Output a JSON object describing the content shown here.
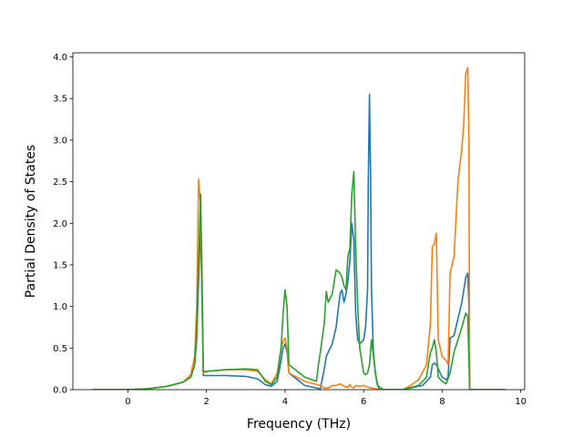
{
  "chart_data": {
    "type": "line",
    "title": "",
    "xlabel": "Frequency (THz)",
    "ylabel": "Partial Density of States",
    "xlim": [
      -1.4,
      10.1
    ],
    "ylim": [
      0,
      4.05
    ],
    "xticks": [
      0,
      2,
      4,
      6,
      8,
      10
    ],
    "yticks": [
      0.0,
      0.5,
      1.0,
      1.5,
      2.0,
      2.5,
      3.0,
      3.5,
      4.0
    ],
    "xtick_labels": [
      "0",
      "2",
      "4",
      "6",
      "8",
      "10"
    ],
    "ytick_labels": [
      "0.0",
      "0.5",
      "1.0",
      "1.5",
      "2.0",
      "2.5",
      "3.0",
      "3.5",
      "4.0"
    ],
    "grid": false,
    "legend": null,
    "series": [
      {
        "color": "#1f77b4",
        "x": [
          -0.9,
          0.0,
          0.5,
          1.0,
          1.4,
          1.6,
          1.7,
          1.75,
          1.8,
          1.85,
          1.88,
          1.92,
          2.0,
          2.5,
          3.0,
          3.3,
          3.5,
          3.65,
          3.8,
          3.9,
          3.95,
          4.0,
          4.05,
          4.1,
          4.5,
          4.9,
          5.0,
          5.05,
          5.1,
          5.2,
          5.3,
          5.4,
          5.45,
          5.5,
          5.55,
          5.6,
          5.65,
          5.7,
          5.75,
          5.8,
          5.85,
          5.9,
          6.0,
          6.05,
          6.1,
          6.12,
          6.15,
          6.18,
          6.2,
          6.25,
          6.3,
          6.35,
          6.4,
          7.0,
          7.5,
          7.7,
          7.75,
          7.8,
          7.85,
          7.9,
          8.0,
          8.1,
          8.15,
          8.2,
          8.3,
          8.4,
          8.5,
          8.6,
          8.65,
          8.68,
          8.7,
          9.6
        ],
        "y": [
          0.0,
          0.0,
          0.01,
          0.04,
          0.09,
          0.15,
          0.3,
          0.6,
          1.3,
          2.0,
          1.2,
          0.17,
          0.17,
          0.17,
          0.16,
          0.13,
          0.06,
          0.04,
          0.1,
          0.35,
          0.5,
          0.55,
          0.45,
          0.2,
          0.05,
          0.01,
          0.25,
          0.4,
          0.45,
          0.55,
          0.75,
          1.15,
          1.2,
          1.05,
          1.15,
          1.3,
          1.55,
          2.0,
          1.8,
          0.9,
          0.6,
          0.55,
          0.6,
          0.75,
          1.2,
          2.5,
          3.55,
          2.5,
          1.2,
          0.45,
          0.2,
          0.07,
          0.0,
          0.0,
          0.05,
          0.15,
          0.3,
          0.32,
          0.3,
          0.25,
          0.15,
          0.12,
          0.15,
          0.62,
          0.65,
          0.85,
          1.05,
          1.35,
          1.4,
          1.0,
          0.0,
          0.0
        ]
      },
      {
        "color": "#ff7f0e",
        "x": [
          -0.9,
          0.0,
          0.5,
          1.0,
          1.4,
          1.6,
          1.7,
          1.75,
          1.8,
          1.85,
          1.88,
          1.92,
          2.0,
          2.5,
          3.0,
          3.3,
          3.5,
          3.65,
          3.8,
          3.9,
          3.95,
          4.0,
          4.05,
          4.1,
          4.5,
          4.9,
          5.0,
          5.1,
          5.2,
          5.3,
          5.4,
          5.5,
          5.6,
          5.65,
          5.7,
          5.75,
          5.8,
          5.9,
          6.0,
          6.1,
          6.2,
          6.3,
          6.4,
          7.0,
          7.2,
          7.4,
          7.6,
          7.7,
          7.75,
          7.8,
          7.85,
          7.9,
          8.0,
          8.1,
          8.15,
          8.2,
          8.3,
          8.4,
          8.5,
          8.55,
          8.6,
          8.65,
          8.68,
          8.7,
          9.6
        ],
        "y": [
          0.0,
          0.0,
          0.01,
          0.04,
          0.09,
          0.18,
          0.4,
          1.0,
          2.53,
          2.2,
          1.3,
          0.2,
          0.22,
          0.24,
          0.24,
          0.22,
          0.12,
          0.07,
          0.2,
          0.5,
          0.58,
          0.62,
          0.5,
          0.2,
          0.1,
          0.05,
          0.02,
          0.02,
          0.05,
          0.05,
          0.07,
          0.04,
          0.03,
          0.06,
          0.03,
          0.02,
          0.05,
          0.04,
          0.05,
          0.03,
          0.02,
          0.01,
          0.0,
          0.0,
          0.05,
          0.12,
          0.3,
          0.8,
          1.72,
          1.75,
          1.88,
          0.6,
          0.4,
          0.35,
          0.3,
          1.4,
          1.6,
          2.5,
          2.9,
          3.2,
          3.8,
          3.87,
          3.0,
          0.0,
          0.0
        ]
      },
      {
        "color": "#2ca02c",
        "x": [
          -0.9,
          0.0,
          0.5,
          1.0,
          1.4,
          1.6,
          1.7,
          1.75,
          1.8,
          1.85,
          1.88,
          1.92,
          2.0,
          2.5,
          3.0,
          3.3,
          3.5,
          3.65,
          3.8,
          3.9,
          3.95,
          4.0,
          4.05,
          4.1,
          4.5,
          4.8,
          4.85,
          4.9,
          5.0,
          5.05,
          5.1,
          5.2,
          5.3,
          5.4,
          5.45,
          5.5,
          5.55,
          5.6,
          5.65,
          5.7,
          5.75,
          5.8,
          5.85,
          5.9,
          6.0,
          6.05,
          6.1,
          6.15,
          6.2,
          6.3,
          6.35,
          6.5,
          7.0,
          7.4,
          7.6,
          7.7,
          7.75,
          7.8,
          7.85,
          7.9,
          8.0,
          8.1,
          8.2,
          8.3,
          8.4,
          8.5,
          8.6,
          8.65,
          8.7,
          9.6
        ],
        "y": [
          0.0,
          0.0,
          0.01,
          0.04,
          0.09,
          0.15,
          0.3,
          0.7,
          1.5,
          2.35,
          1.6,
          0.22,
          0.22,
          0.24,
          0.25,
          0.24,
          0.1,
          0.06,
          0.15,
          0.5,
          0.9,
          1.2,
          1.0,
          0.3,
          0.15,
          0.1,
          0.3,
          0.45,
          0.8,
          1.18,
          1.05,
          1.15,
          1.44,
          1.4,
          1.35,
          1.25,
          1.2,
          1.6,
          1.7,
          2.35,
          2.62,
          1.7,
          1.0,
          0.5,
          0.2,
          0.18,
          0.2,
          0.3,
          0.6,
          0.2,
          0.05,
          0.0,
          0.0,
          0.05,
          0.15,
          0.45,
          0.5,
          0.6,
          0.45,
          0.15,
          0.1,
          0.07,
          0.2,
          0.45,
          0.6,
          0.75,
          0.92,
          0.88,
          0.0,
          0.0
        ]
      }
    ]
  }
}
